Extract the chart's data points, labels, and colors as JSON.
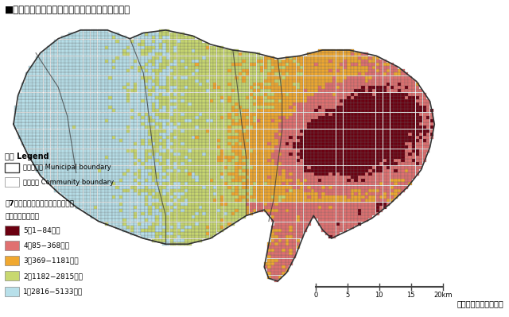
{
  "title": "■災害時活動困難度を考慮した火災危険度ランク",
  "source_text": "出典：東京都市整備局",
  "legend_title1": "凡例 Legend",
  "legend_muni": "市区町村界 Municipal boundary",
  "legend_muni_en": "Municipal boundary",
  "legend_comm": "町丁目界 Community boundary",
  "legend_comm_en": "Community boundary",
  "legend_rank_title_line1": "第7回災害時活動困難度を考慮した",
  "legend_rank_title_line2": "総合危険度ランク",
  "rank5_label": "5（1−84位）",
  "rank4_label": "4（85−368位）",
  "rank3_label": "3（369−1181位）",
  "rank2_label": "2（1182−2815位）",
  "rank1_label": "1（2816−5133位）",
  "color_rank5": "#6b0010",
  "color_rank4": "#e07070",
  "color_rank3": "#f0a830",
  "color_rank2": "#c8d870",
  "color_rank1": "#b8e0ea",
  "color_boundary_thick": "#333333",
  "color_boundary_thin": "#666666",
  "color_bg": "#ffffff",
  "scale_bar_ticks": [
    0,
    5,
    10,
    15,
    20
  ],
  "figsize": [
    6.4,
    3.99
  ],
  "dpi": 100
}
